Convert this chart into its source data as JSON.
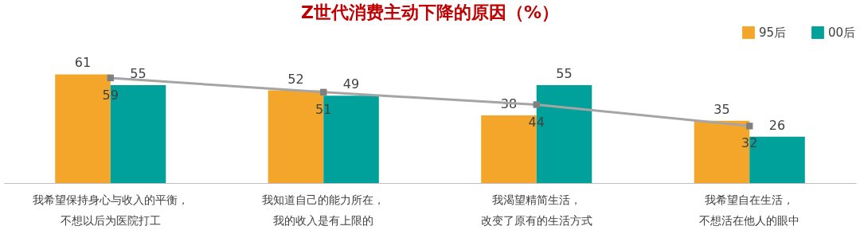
{
  "chart_data": {
    "type": "bar",
    "title": "Z世代消费主动下降的原因（%）",
    "categories": [
      "我希望保持身心与收入的平衡，不想以后为医院打工",
      "我知道自己的能力所在，我的收入是有上限的",
      "我渴望精简生活，改变了原有的生活方式",
      "我希望自在生活，不想活在他人的眼中"
    ],
    "series": [
      {
        "name": "95后",
        "color": "#f4a62a",
        "values": [
          61,
          52,
          38,
          35
        ]
      },
      {
        "name": "00后",
        "color": "#00a19b",
        "values": [
          55,
          49,
          55,
          26
        ]
      },
      {
        "type": "line",
        "color": "#a5a5a5",
        "values": [
          59,
          51,
          44,
          32
        ]
      }
    ],
    "marker": "square",
    "data_labels": true,
    "legend": "top right",
    "grid": false,
    "tick_labels": "x"
  }
}
